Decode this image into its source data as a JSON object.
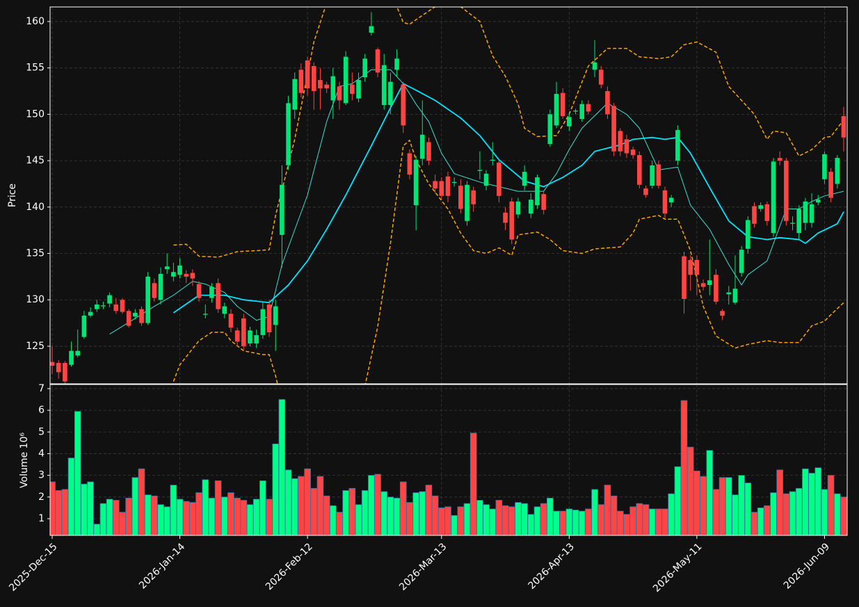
{
  "chart_data": {
    "type": "candlestick",
    "ylabel": "Price",
    "volume_label": "Volume  10⁶",
    "xlim": [
      -0.33,
      124.55
    ],
    "xticks": [
      {
        "value": 0,
        "label": "2025-Dec-15"
      },
      {
        "value": 20,
        "label": "2026-Jan-14"
      },
      {
        "value": 40,
        "label": "2026-Feb-12"
      },
      {
        "value": 61,
        "label": "2026-Mar-13"
      },
      {
        "value": 81,
        "label": "2026-Apr-13"
      },
      {
        "value": 101,
        "label": "2026-May-11"
      },
      {
        "value": 121,
        "label": "2026-Jun-09"
      }
    ],
    "ylim": [
      120.95,
      161.57
    ],
    "yticks": [
      125,
      130,
      135,
      140,
      145,
      150,
      155,
      160
    ],
    "volume_ylim": [
      0.23,
      7.19
    ],
    "volume_yticks": [
      1,
      2,
      3,
      4,
      5,
      6,
      7
    ],
    "grid": true,
    "up_color": "#00e676",
    "down_color": "#ff4444",
    "volume_up_color": "#00ff88",
    "volume_down_color": "#ff4444",
    "volume_edge_color": "#3f6f9f",
    "open": [
      123.3,
      123.2,
      123.2,
      123,
      124,
      126,
      128.3,
      129,
      129.3,
      129.6,
      129.5,
      130,
      128.8,
      128.2,
      129,
      127.5,
      131.8,
      130,
      133.3,
      132.5,
      132.7,
      132.8,
      132.9,
      131.7,
      128.4,
      130.2,
      131.8,
      128.5,
      128.5,
      126.7,
      128,
      125.3,
      125.3,
      126.2,
      129.5,
      127.3,
      137,
      144.5,
      150.5,
      154.8,
      155.8,
      155.2,
      153.7,
      153.2,
      151.5,
      153,
      151.2,
      153.2,
      151.7,
      154,
      158.8,
      157,
      151,
      151,
      154.8,
      153.2,
      145.8,
      140.2,
      145.2,
      147,
      142.8,
      142.8,
      143.3,
      142.6,
      142.3,
      138.5,
      141.8,
      143.9,
      142.3,
      145,
      144.8,
      139.4,
      140.6,
      139.2,
      142.3,
      139.3,
      140.2,
      141.4,
      146.8,
      148.8,
      152.3,
      148.7,
      150.3,
      149.5,
      151.1,
      154.8,
      154.8,
      152.5,
      150.9,
      148.2,
      147.3,
      146.2,
      145.6,
      142,
      142.3,
      144.6,
      141.8,
      140.5,
      145,
      134.7,
      134.3,
      134.3,
      131.8,
      131.6,
      132.7,
      128.8,
      130.6,
      129.7,
      132.9,
      135.5,
      140.1,
      139.8,
      140.3,
      137.2,
      145.3,
      145,
      138.2,
      137.2,
      138.3,
      138.3,
      140.5,
      143,
      143.8,
      142.5,
      149.8
    ],
    "high": [
      125,
      123.5,
      123.4,
      125.5,
      126.8,
      128.8,
      129.2,
      130,
      129.8,
      130.8,
      130.2,
      130.2,
      129,
      129,
      129.3,
      133,
      132.3,
      133.5,
      135,
      134,
      134.5,
      133.2,
      133.3,
      132,
      129.5,
      131.8,
      132.3,
      129.7,
      129,
      127,
      128.5,
      127.1,
      126.8,
      129.8,
      130,
      130,
      144.5,
      152,
      154.5,
      155.5,
      156.2,
      155.6,
      155,
      153.5,
      155,
      153.5,
      156.8,
      154.5,
      154.5,
      156.5,
      161,
      157.2,
      156.5,
      154.5,
      157,
      153.5,
      146.2,
      145.5,
      151.5,
      147.5,
      143.5,
      143.2,
      143.8,
      143.2,
      143,
      142.8,
      142.2,
      146,
      144,
      147,
      145.2,
      140,
      141,
      141,
      144.5,
      141.5,
      143.5,
      141.8,
      150.5,
      153.5,
      152.8,
      150.2,
      150.6,
      151.5,
      151.5,
      158,
      155.2,
      153,
      151.2,
      148.5,
      147.8,
      146.5,
      146,
      142.3,
      145,
      145,
      142.2,
      141.3,
      148.8,
      135.2,
      134.8,
      134.8,
      132.2,
      136.5,
      133.3,
      129,
      131.5,
      134.8,
      135.8,
      139,
      140.5,
      140.5,
      140.6,
      145.3,
      146,
      145.3,
      139,
      140.2,
      141,
      141.5,
      141.3,
      146,
      144.2,
      145.6,
      150.8
    ],
    "low": [
      122,
      121.5,
      121,
      122.8,
      123.8,
      125.8,
      128.1,
      128.7,
      129,
      129.2,
      128.5,
      128.5,
      127,
      127.9,
      127.2,
      127.3,
      129.8,
      129.5,
      132.8,
      132,
      132.3,
      131.8,
      131.5,
      129.8,
      128,
      129.7,
      128.6,
      128,
      126.5,
      125,
      124.6,
      125,
      124.8,
      125.8,
      126,
      124.5,
      133.5,
      144,
      149.5,
      151.8,
      152,
      150.5,
      150.5,
      152.3,
      149.5,
      150.5,
      151,
      151.5,
      151.3,
      153.5,
      158.5,
      154,
      150.5,
      150,
      154,
      148,
      143,
      137.5,
      144.5,
      144.5,
      141.5,
      140.8,
      140.5,
      142.2,
      139.3,
      138,
      139.5,
      143,
      141.8,
      144.5,
      140.5,
      137.5,
      136,
      138.8,
      141.8,
      138.8,
      139.8,
      139.2,
      146.5,
      148.5,
      149.5,
      148.2,
      150,
      149.2,
      150,
      154,
      152.8,
      149.5,
      145.5,
      145.5,
      145.3,
      145.2,
      142,
      141,
      142,
      142,
      138.8,
      140,
      144.5,
      128.5,
      131,
      130.5,
      131,
      130.5,
      129.5,
      127.8,
      129.5,
      129.5,
      132.5,
      135,
      137.8,
      139.5,
      138,
      136.8,
      144.5,
      138,
      137.5,
      136.5,
      137.5,
      137.8,
      140.2,
      142.5,
      140.5,
      142,
      146
    ],
    "close": [
      122.9,
      122.2,
      121.2,
      124.5,
      124.5,
      128.3,
      128.7,
      129.5,
      129.4,
      130.5,
      128.8,
      128.7,
      127.2,
      128.6,
      127.5,
      132.5,
      130.2,
      132.8,
      133.6,
      133,
      133.7,
      132.5,
      132.3,
      130.2,
      128.5,
      131.4,
      129,
      129.3,
      127,
      125.5,
      125,
      126.7,
      126.2,
      129,
      126.5,
      129.3,
      142.4,
      151.2,
      153.8,
      152.3,
      152.8,
      152.5,
      152.8,
      152.8,
      154.1,
      151.5,
      156.2,
      152.2,
      153.7,
      156,
      159.5,
      154.5,
      155.3,
      153.5,
      156,
      148.8,
      143.5,
      145.1,
      147.8,
      145,
      142,
      141.2,
      141.2,
      142.7,
      139.8,
      142.4,
      140.3,
      144,
      143.6,
      145.1,
      141.2,
      138.3,
      136.5,
      140.6,
      143.8,
      140.8,
      143.2,
      139.7,
      150,
      152.2,
      149.8,
      149.7,
      150.4,
      151.1,
      150.3,
      155.6,
      153.2,
      150,
      146,
      146,
      145.8,
      145.6,
      142.4,
      141.3,
      144.5,
      142.3,
      139.3,
      141,
      148.3,
      130.1,
      132.7,
      132.7,
      131.4,
      132.1,
      129.8,
      128.3,
      130.8,
      131.2,
      135.4,
      138.6,
      138.2,
      140.2,
      138.5,
      144.9,
      145,
      138.5,
      138.3,
      139.8,
      140.6,
      140.3,
      140.8,
      145.7,
      141,
      145.3,
      147.5
    ],
    "volume": [
      2.7,
      2.3,
      2.35,
      3.8,
      5.95,
      2.6,
      2.7,
      0.75,
      1.7,
      1.9,
      1.85,
      1.3,
      1.95,
      2.9,
      3.3,
      2.1,
      2.05,
      1.65,
      1.55,
      2.55,
      1.9,
      1.8,
      1.75,
      2.2,
      2.8,
      1.95,
      2.75,
      2.0,
      2.2,
      1.95,
      1.85,
      1.65,
      1.9,
      2.75,
      1.9,
      4.45,
      6.5,
      3.25,
      2.85,
      2.95,
      3.3,
      2.4,
      2.95,
      2.05,
      1.6,
      1.3,
      2.3,
      2.4,
      1.65,
      2.3,
      3.0,
      3.05,
      2.25,
      2.0,
      1.95,
      2.7,
      1.75,
      2.2,
      2.25,
      2.55,
      2.05,
      1.5,
      1.55,
      1.15,
      1.55,
      1.7,
      4.95,
      1.85,
      1.65,
      1.45,
      1.85,
      1.6,
      1.55,
      1.75,
      1.7,
      1.2,
      1.55,
      1.7,
      1.95,
      1.35,
      1.35,
      1.45,
      1.4,
      1.35,
      1.45,
      2.35,
      1.65,
      2.55,
      2.05,
      1.35,
      1.2,
      1.55,
      1.7,
      1.65,
      1.45,
      1.45,
      1.45,
      2.15,
      3.4,
      6.45,
      4.3,
      3.2,
      2.95,
      4.15,
      2.35,
      2.9,
      2.9,
      2.1,
      3.0,
      2.65,
      1.3,
      1.5,
      1.6,
      2.2,
      3.25,
      2.15,
      2.25,
      2.4,
      3.3,
      3.1,
      3.35,
      2.35,
      3.0,
      2.15,
      2.0
    ],
    "overlays": [
      {
        "color": "#00e5ff",
        "width": 1.8,
        "dashed": false,
        "x": [
          19,
          23,
          27,
          30,
          34,
          37,
          40,
          43,
          46,
          50,
          53,
          55,
          57,
          60,
          64,
          67,
          70,
          74,
          77,
          80,
          83,
          85,
          89,
          91,
          94,
          96,
          98,
          100,
          103,
          106,
          109,
          112,
          114,
          117,
          118,
          120,
          123,
          124
        ],
        "values": [
          128.6,
          130.5,
          130.5,
          130,
          129.7,
          131.6,
          134.2,
          137.6,
          141.3,
          146.6,
          150.7,
          153.3,
          152.6,
          151.5,
          149.6,
          147.7,
          145.1,
          142.8,
          142.2,
          143.2,
          144.5,
          146,
          146.7,
          147.3,
          147.5,
          147.3,
          147.5,
          145.8,
          142.1,
          138.5,
          136.8,
          136.5,
          136.7,
          136.5,
          136.1,
          137.2,
          138.2,
          139.5
        ]
      },
      {
        "color": "#40e0d0",
        "width": 1,
        "dashed": false,
        "x": [
          9,
          13,
          16,
          19,
          22,
          24,
          27,
          29,
          32,
          34,
          36,
          40,
          43,
          45,
          47,
          50,
          53,
          55,
          57,
          59,
          61,
          63,
          67,
          70,
          73,
          77,
          79,
          81,
          83,
          87,
          90,
          92,
          95,
          98,
          100,
          103,
          106,
          108,
          109,
          112,
          115,
          117,
          119,
          121,
          124
        ],
        "values": [
          126.3,
          128,
          129.3,
          130.5,
          132,
          131.7,
          130.8,
          129.3,
          127.8,
          128.2,
          133.8,
          141.3,
          149.2,
          153,
          153.3,
          154.8,
          154.8,
          153.3,
          151.1,
          149.2,
          145.8,
          143.6,
          142.7,
          142.2,
          141.7,
          141.7,
          143.6,
          146.2,
          148.5,
          151.2,
          150,
          148.5,
          144,
          144.3,
          140.2,
          137.6,
          133.8,
          131.6,
          132.7,
          134.2,
          139.8,
          139.8,
          140.6,
          141.2,
          141.7
        ]
      },
      {
        "color": "#ffa500",
        "width": 1.5,
        "dashed": true,
        "x": [
          19,
          21,
          23,
          26,
          29,
          32,
          34,
          35,
          38,
          41,
          43,
          48,
          54,
          55,
          56,
          57,
          60,
          64,
          67,
          69,
          71,
          73,
          74,
          76,
          79,
          81,
          84,
          87,
          90,
          92,
          95,
          97,
          99,
          101,
          104,
          106,
          110,
          112,
          113,
          115,
          117,
          119,
          121,
          122,
          124
        ],
        "values": [
          135.9,
          136,
          134.7,
          134.6,
          135.2,
          135.3,
          135.4,
          139.1,
          147.3,
          157.8,
          162,
          166,
          161.6,
          159.9,
          159.7,
          160.2,
          161.6,
          161.6,
          160,
          156.3,
          154.1,
          151.1,
          148.5,
          147.6,
          147.7,
          150,
          155.2,
          157.1,
          157.1,
          156.2,
          156,
          156.2,
          157.5,
          157.8,
          156.7,
          153,
          150,
          147.3,
          148.2,
          148,
          145.5,
          146.2,
          147.5,
          147.6,
          149.4
        ]
      },
      {
        "color": "#ffa500",
        "width": 1.5,
        "dashed": true,
        "x": [
          19,
          20,
          23,
          25,
          27,
          28,
          30,
          33,
          34,
          35,
          37,
          49,
          51,
          53,
          55,
          56,
          57,
          59,
          62,
          64,
          66,
          68,
          70,
          72,
          73,
          76,
          78,
          80,
          83,
          85,
          89,
          91,
          92,
          95,
          96,
          98,
          100,
          102,
          104,
          107,
          109,
          112,
          114,
          117,
          119,
          121,
          122,
          124
        ],
        "values": [
          121.2,
          123,
          125.6,
          126.5,
          126.5,
          125.6,
          124.5,
          124.1,
          124.1,
          121.8,
          116,
          120.7,
          127.1,
          136.1,
          146.6,
          147.2,
          145.1,
          142.5,
          139.8,
          137.2,
          135.3,
          135,
          135.6,
          134.8,
          137,
          137.3,
          136.5,
          135.3,
          135,
          135.5,
          135.7,
          137.2,
          138.7,
          139.1,
          138.7,
          138.7,
          135.3,
          129.3,
          126.1,
          124.8,
          125.2,
          125.6,
          125.4,
          125.4,
          127.2,
          127.7,
          128.4,
          129.7
        ]
      }
    ]
  }
}
